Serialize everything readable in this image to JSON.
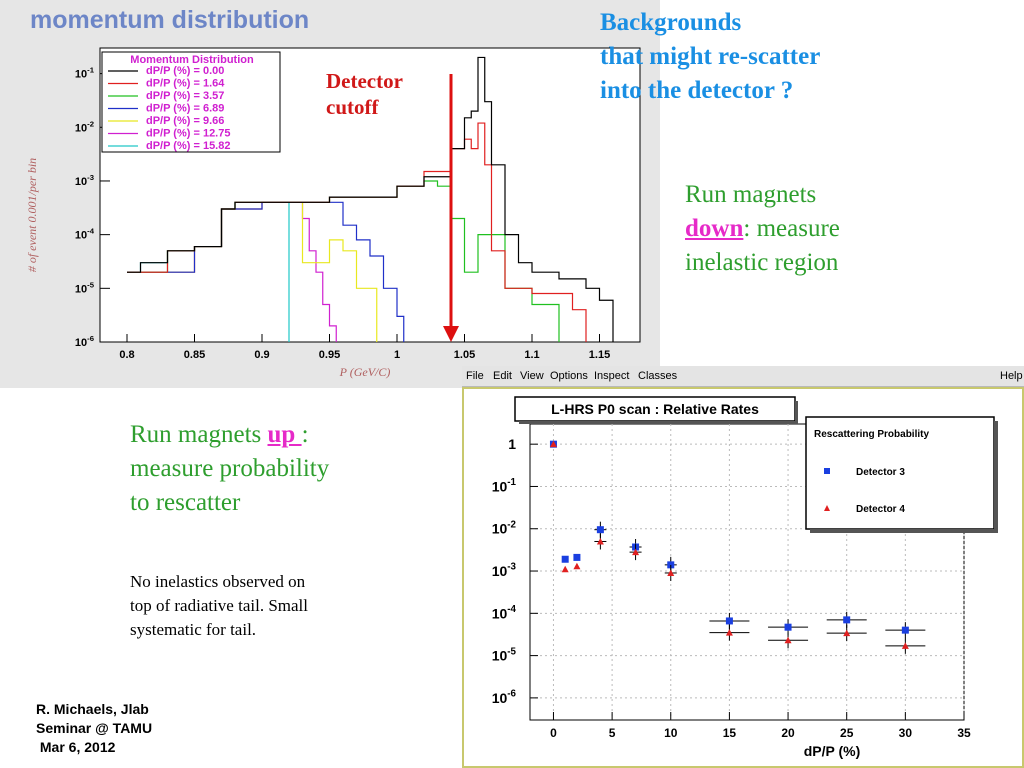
{
  "slide": {
    "panel1_title": "momentum distribution",
    "heading": [
      "Backgrounds",
      "that might re-scatter",
      "into the detector  ?"
    ],
    "detector_label": [
      "Detector",
      "cutoff"
    ],
    "run_down": {
      "prefix": "Run   magnets",
      "keyword": "down",
      "suffix": ":  measure",
      "line3": "inelastic  region"
    },
    "run_up": {
      "prefix": "Run   magnets ",
      "keyword": "up ",
      "suffix": ":",
      "line2": "measure  probability",
      "line3": "to  rescatter"
    },
    "note": [
      "No  inelastics  observed  on",
      "top of radiative tail.   Small",
      "systematic  for   tail."
    ],
    "credit": [
      "R. Michaels,  Jlab",
      "Seminar @ TAMU",
      " Mar 6, 2012"
    ],
    "colors": {
      "heading": "#1a8fe3",
      "green_text": "#2e9e2e",
      "magenta": "#e62ac8",
      "arrow": "#dd1010"
    }
  },
  "menubar": {
    "items": [
      "File",
      "Edit",
      "View",
      "Options",
      "Inspect",
      "Classes"
    ],
    "help": "Help"
  },
  "chart_data": [
    {
      "type": "line",
      "title": "Momentum Distribution",
      "xlabel": "P (GeV/C)",
      "ylabel": "# of event 0.001/per bin",
      "xlim": [
        0.78,
        1.18
      ],
      "ylim": [
        1e-06,
        0.3
      ],
      "log_y": true,
      "x_ticks": [
        "0.8",
        "0.85",
        "0.9",
        "0.95",
        "1",
        "1.05",
        "1.1",
        "1.15"
      ],
      "y_ticks": [
        "10^-6",
        "10^-5",
        "10^-4",
        "10^-3",
        "10^-2",
        "10^-1"
      ],
      "cutoff_x": 1.045,
      "legend_position": "top-left",
      "series": [
        {
          "name": "dP/P (%) = 0.00",
          "color": "#000000",
          "x": [
            0.8,
            0.81,
            0.83,
            0.85,
            0.87,
            0.88,
            0.9,
            0.95,
            1.0,
            1.02,
            1.04,
            1.05,
            1.055,
            1.06,
            1.065,
            1.07,
            1.08,
            1.09,
            1.1,
            1.12,
            1.14,
            1.15,
            1.16
          ],
          "y": [
            2e-05,
            3e-05,
            5e-05,
            6e-05,
            0.0003,
            0.0004,
            0.0004,
            0.0005,
            0.0008,
            0.0012,
            0.004,
            0.015,
            0.02,
            0.2,
            0.03,
            0.002,
            0.0001,
            3e-05,
            2e-05,
            1.5e-05,
            1e-05,
            6e-06,
            3e-06
          ]
        },
        {
          "name": "dP/P (%) = 1.64",
          "color": "#e02020",
          "x": [
            0.8,
            0.83,
            0.85,
            0.87,
            0.88,
            0.9,
            0.95,
            1.0,
            1.02,
            1.04,
            1.05,
            1.055,
            1.06,
            1.065,
            1.07,
            1.08,
            1.1,
            1.13,
            1.14
          ],
          "y": [
            2e-05,
            5e-05,
            6e-05,
            0.0003,
            0.0004,
            0.0004,
            0.0005,
            0.0008,
            0.0015,
            0.004,
            0.006,
            0.004,
            0.012,
            0.002,
            5e-05,
            1e-05,
            8e-06,
            4e-06,
            2e-06
          ]
        },
        {
          "name": "dP/P (%) = 3.57",
          "color": "#20c020",
          "x": [
            0.8,
            0.83,
            0.85,
            0.87,
            0.88,
            0.9,
            0.95,
            1.0,
            1.02,
            1.03,
            1.04,
            1.05,
            1.06,
            1.08,
            1.1,
            1.12
          ],
          "y": [
            2e-05,
            5e-05,
            6e-05,
            0.0003,
            0.0004,
            0.0004,
            0.0005,
            0.0008,
            0.001,
            0.0008,
            0.0002,
            2e-05,
            0.0001,
            1e-05,
            5e-06,
            2e-06
          ]
        },
        {
          "name": "dP/P (%) = 6.89",
          "color": "#2030c8",
          "x": [
            0.8,
            0.85,
            0.87,
            0.9,
            0.95,
            0.96,
            0.97,
            0.98,
            0.99,
            1.0,
            1.005
          ],
          "y": [
            2e-05,
            6e-05,
            0.0003,
            0.0004,
            0.0004,
            0.00015,
            8e-05,
            4e-05,
            1e-05,
            3e-06,
            1e-06
          ]
        },
        {
          "name": "dP/P (%) = 9.66",
          "color": "#e8e820",
          "x": [
            0.8,
            0.85,
            0.87,
            0.9,
            0.92,
            0.93,
            0.95,
            0.96,
            0.97,
            0.985
          ],
          "y": [
            2e-05,
            6e-05,
            0.0003,
            0.0004,
            0.0004,
            3e-05,
            8e-05,
            5e-05,
            1e-05,
            1e-06
          ]
        },
        {
          "name": "dP/P (%) = 12.75",
          "color": "#d020d0",
          "x": [
            0.8,
            0.85,
            0.87,
            0.9,
            0.92,
            0.93,
            0.935,
            0.94,
            0.945,
            0.95,
            0.955
          ],
          "y": [
            2e-05,
            6e-05,
            0.0003,
            0.0004,
            0.0004,
            0.0002,
            5e-05,
            2e-05,
            5e-06,
            2e-06,
            1e-06
          ]
        },
        {
          "name": "dP/P (%) = 15.82",
          "color": "#20c8c8",
          "x": [
            0.8,
            0.81,
            0.83,
            0.85,
            0.87,
            0.88,
            0.9,
            0.91,
            0.92
          ],
          "y": [
            2e-05,
            3e-05,
            5e-05,
            6e-05,
            0.0003,
            0.0004,
            0.0004,
            0.0004,
            0.0004
          ]
        }
      ]
    },
    {
      "type": "scatter",
      "title": "L-HRS P0 scan : Relative Rates",
      "xlabel": "dP/P  (%)",
      "ylabel": "",
      "xlim": [
        -2,
        35
      ],
      "ylim": [
        3e-07,
        3
      ],
      "log_y": true,
      "x_ticks": [
        "0",
        "5",
        "10",
        "15",
        "20",
        "25",
        "30",
        "35"
      ],
      "y_ticks": [
        "1",
        "10^-1",
        "10^-2",
        "10^-3",
        "10^-4",
        "10^-5",
        "10^-6"
      ],
      "legend_title": "Rescattering Probability",
      "legend_position": "top-right",
      "series": [
        {
          "name": "Detector 3",
          "color": "#1a3fe0",
          "marker": "square",
          "x": [
            0,
            1,
            2,
            4,
            7,
            10,
            15,
            20,
            25,
            30
          ],
          "y": [
            1.0,
            0.0019,
            0.0021,
            0.0095,
            0.0037,
            0.0014,
            6.6e-05,
            4.7e-05,
            7e-05,
            4e-05
          ]
        },
        {
          "name": "Detector 4",
          "color": "#e02020",
          "marker": "triangle",
          "x": [
            0,
            1,
            2,
            4,
            7,
            10,
            15,
            20,
            25,
            30
          ],
          "y": [
            1.0,
            0.0011,
            0.0013,
            0.005,
            0.0028,
            0.0009,
            3.5e-05,
            2.3e-05,
            3.4e-05,
            1.7e-05
          ]
        }
      ]
    }
  ]
}
